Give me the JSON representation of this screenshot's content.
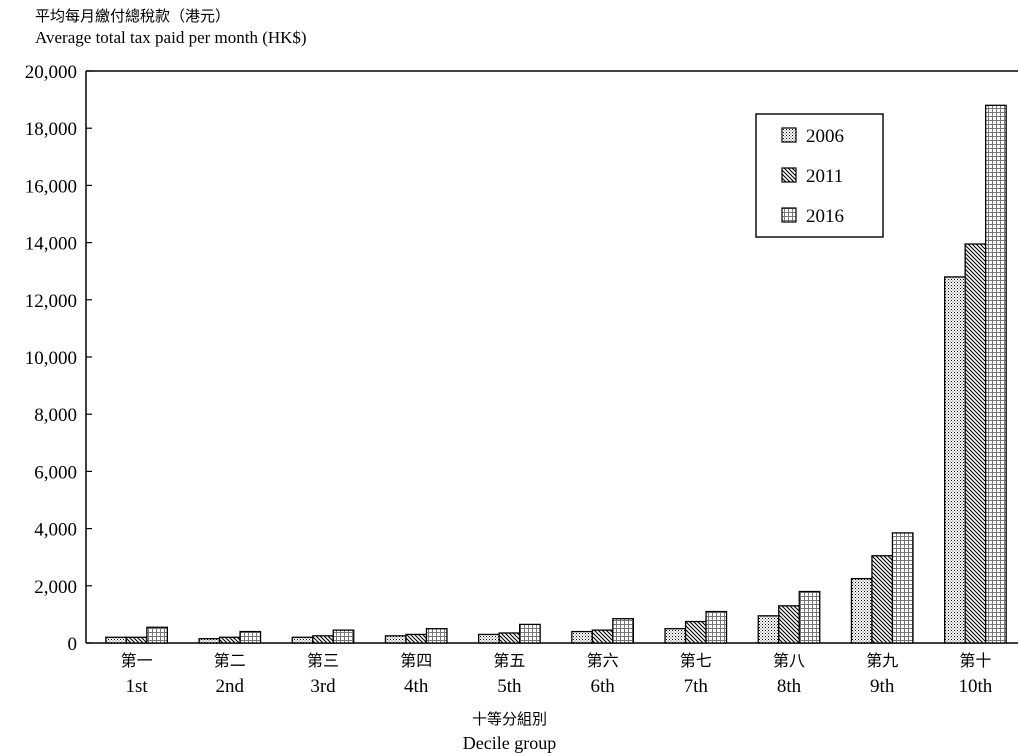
{
  "chart_data": {
    "type": "bar",
    "ylabel_zh": "平均每月繳付總稅款（港元）",
    "ylabel_en": "Average total tax paid per month (HK$)",
    "xlabel_zh": "十等分組別",
    "xlabel_en": "Decile group",
    "categories_zh": [
      "第一",
      "第二",
      "第三",
      "第四",
      "第五",
      "第六",
      "第七",
      "第八",
      "第九",
      "第十"
    ],
    "categories_en": [
      "1st",
      "2nd",
      "3rd",
      "4th",
      "5th",
      "6th",
      "7th",
      "8th",
      "9th",
      "10th"
    ],
    "yticks": [
      "0",
      "2,000",
      "4,000",
      "6,000",
      "8,000",
      "10,000",
      "12,000",
      "14,000",
      "16,000",
      "18,000",
      "20,000"
    ],
    "ylim": [
      0,
      20000
    ],
    "legend_position": "top-right",
    "series": [
      {
        "name": "2006",
        "pattern": "dots",
        "values": [
          200,
          150,
          200,
          250,
          300,
          400,
          500,
          950,
          2250,
          12800
        ]
      },
      {
        "name": "2011",
        "pattern": "diagonal",
        "values": [
          200,
          200,
          250,
          300,
          350,
          450,
          750,
          1300,
          3050,
          13950
        ]
      },
      {
        "name": "2016",
        "pattern": "grid",
        "values": [
          550,
          400,
          450,
          500,
          650,
          850,
          1100,
          1800,
          3850,
          18800
        ]
      }
    ]
  }
}
